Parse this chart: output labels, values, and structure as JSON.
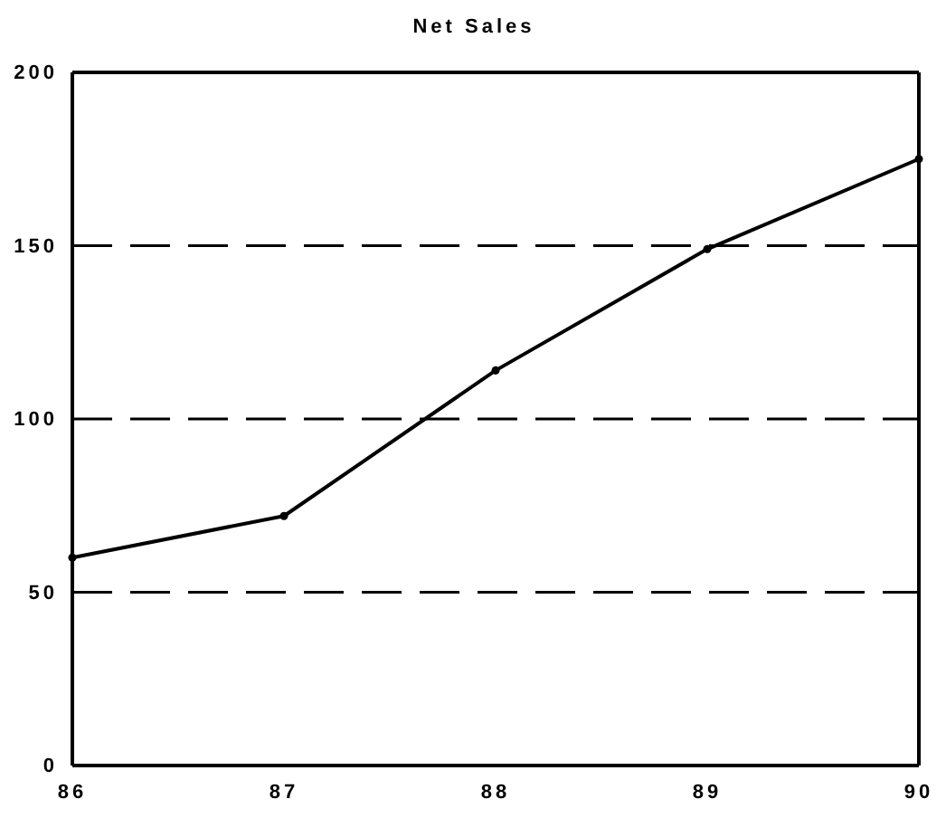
{
  "chart_data": {
    "type": "line",
    "title": "Net Sales",
    "categories": [
      "86",
      "87",
      "88",
      "89",
      "90"
    ],
    "series": [
      {
        "color": "#000000",
        "values": [
          60,
          72,
          114,
          149,
          175
        ]
      }
    ],
    "ylim": [
      0,
      200
    ],
    "yticks": [
      0,
      50,
      100,
      150,
      200
    ],
    "grid": "y",
    "marker": "circle",
    "line_style": "solid"
  }
}
